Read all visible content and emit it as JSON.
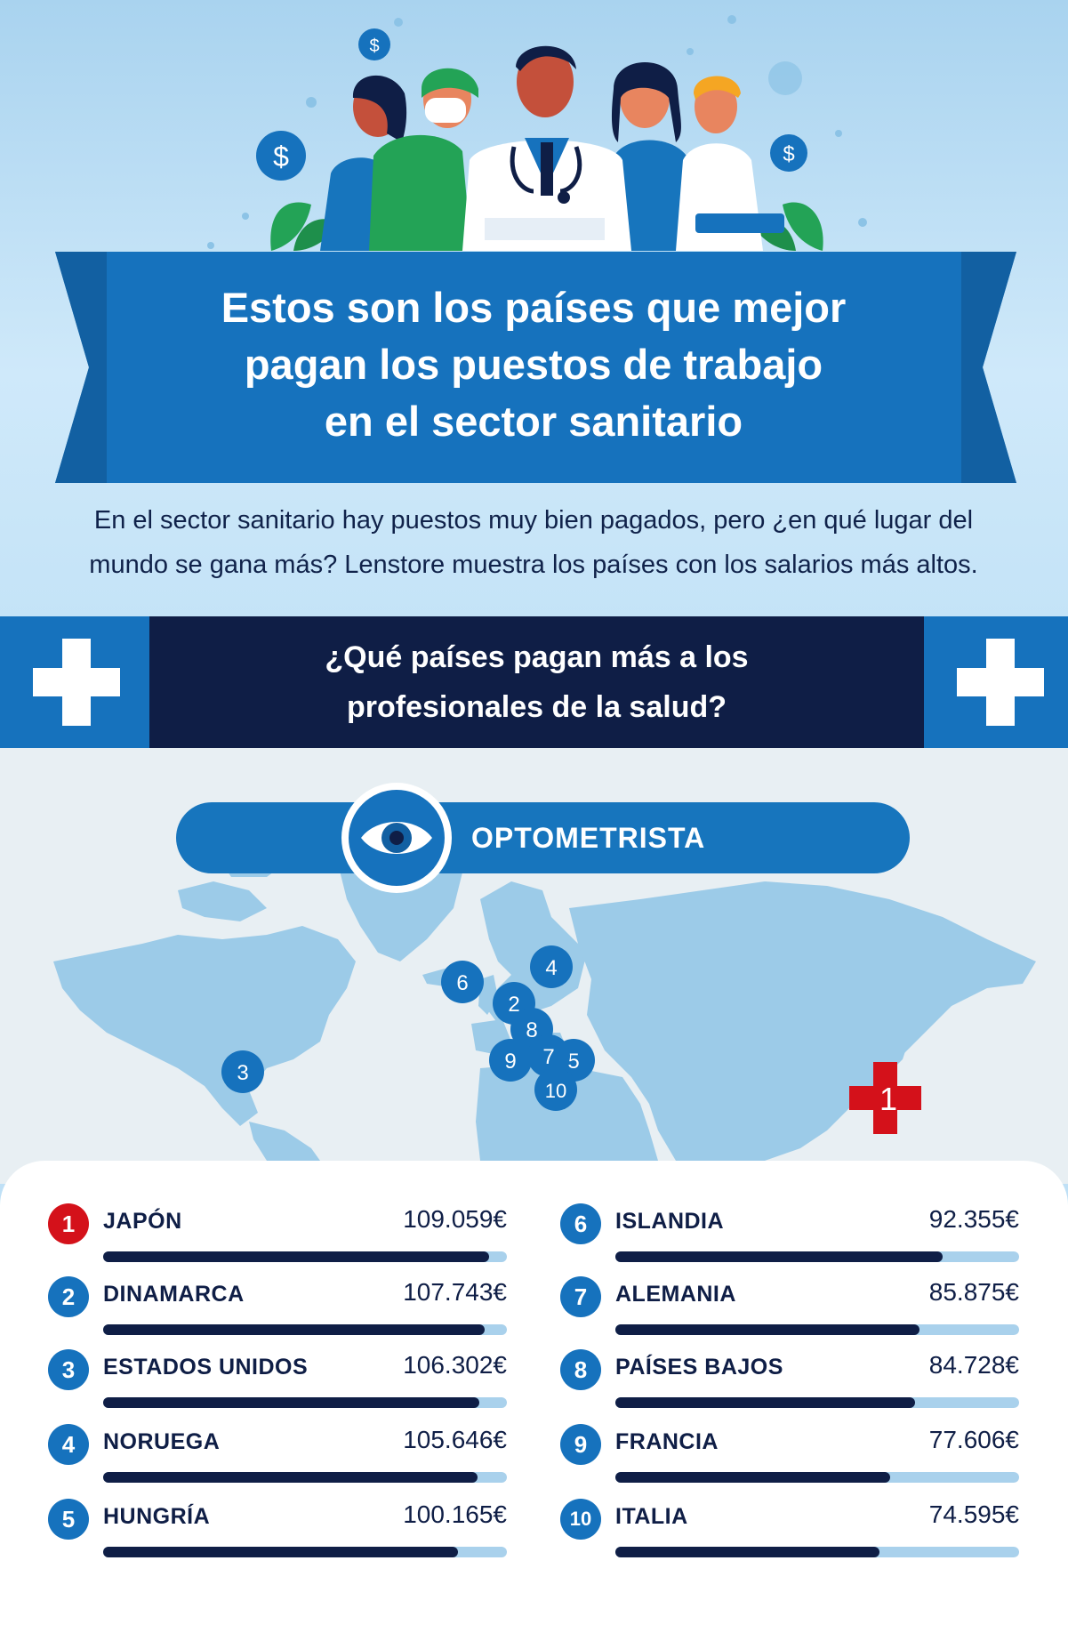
{
  "header": {
    "title_lines": [
      "Estos son los países que mejor",
      "pagan los puestos de trabajo",
      "en el sector sanitario"
    ],
    "intro": "En el sector sanitario hay puestos muy bien pagados, pero ¿en qué lugar del mundo se gana más? Lenstore muestra los países con los salarios más altos."
  },
  "question": {
    "lines": [
      "¿Qué países pagan más a los",
      "profesionales de la salud?"
    ]
  },
  "category": {
    "label": "OPTOMETRISTA",
    "icon": "eye-icon"
  },
  "map": {
    "markers": [
      "1",
      "2",
      "3",
      "4",
      "5",
      "6",
      "7",
      "8",
      "9",
      "10"
    ]
  },
  "currency_icon": "$",
  "colors": {
    "dark_navy": "#0f1e46",
    "primary_blue": "#1672bd",
    "light_blue": "#a9d1ec",
    "highlight_red": "#d4111a",
    "map_land": "#9ccbe8"
  },
  "chart_data": {
    "type": "bar",
    "title": "OPTOMETRISTA",
    "categories": [
      "JAPÓN",
      "DINAMARCA",
      "ESTADOS UNIDOS",
      "NORUEGA",
      "HUNGRÍA",
      "ISLANDIA",
      "ALEMANIA",
      "PAÍSES BAJOS",
      "FRANCIA",
      "ITALIA"
    ],
    "ranks": [
      "1",
      "2",
      "3",
      "4",
      "5",
      "6",
      "7",
      "8",
      "9",
      "10"
    ],
    "values": [
      109059,
      107743,
      106302,
      105646,
      100165,
      92355,
      85875,
      84728,
      77606,
      74595
    ],
    "value_labels": [
      "109.059€",
      "107.743€",
      "106.302€",
      "105.646€",
      "100.165€",
      "92.355€",
      "85.875€",
      "84.728€",
      "77.606€",
      "74.595€"
    ],
    "xlim": [
      0,
      114000
    ],
    "unit": "€",
    "grid": false
  }
}
